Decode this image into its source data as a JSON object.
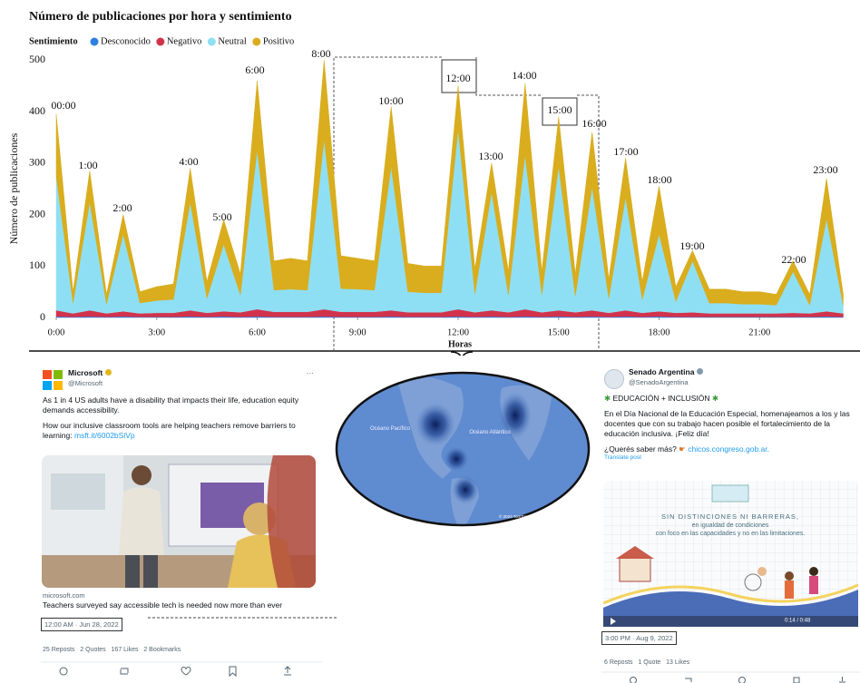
{
  "chart_data": {
    "type": "area",
    "stacked": true,
    "title": "Número de publicaciones por hora y sentimiento",
    "legend_title": "Sentimiento",
    "x_label": "Horas",
    "y_label": "Número de publicaciones",
    "x": [
      0,
      0.5,
      1,
      1.5,
      2,
      2.5,
      3,
      3.5,
      4,
      4.5,
      5,
      5.5,
      6,
      6.5,
      7,
      7.5,
      8,
      8.5,
      9,
      9.5,
      10,
      10.5,
      11,
      11.5,
      12,
      12.5,
      13,
      13.5,
      14,
      14.5,
      15,
      15.5,
      16,
      16.5,
      17,
      17.5,
      18,
      18.5,
      19,
      19.5,
      20,
      20.5,
      21,
      21.5,
      22,
      22.5,
      23,
      23.5
    ],
    "xlim": [
      0,
      24
    ],
    "xticks": [
      {
        "value": 0,
        "label": "0:00"
      },
      {
        "value": 3,
        "label": "3:00"
      },
      {
        "value": 6,
        "label": "6:00"
      },
      {
        "value": 9,
        "label": "9:00"
      },
      {
        "value": 12,
        "label": "12:00"
      },
      {
        "value": 15,
        "label": "15:00"
      },
      {
        "value": 18,
        "label": "18:00"
      },
      {
        "value": 21,
        "label": "21:00"
      }
    ],
    "ylim": [
      0,
      520
    ],
    "yticks": [
      0,
      100,
      200,
      300,
      400,
      500
    ],
    "grid": false,
    "series": [
      {
        "name": "Desconocido",
        "color": "#2f7fe0",
        "values": [
          2,
          1,
          2,
          1,
          2,
          1,
          1,
          1,
          2,
          1,
          2,
          1,
          2,
          1,
          1,
          1,
          2,
          1,
          1,
          1,
          2,
          1,
          1,
          1,
          2,
          1,
          2,
          1,
          2,
          1,
          2,
          1,
          2,
          1,
          2,
          1,
          2,
          1,
          1,
          1,
          1,
          1,
          1,
          1,
          1,
          1,
          2,
          1
        ]
      },
      {
        "name": "Negativo",
        "color": "#d2334c",
        "values": [
          12,
          7,
          12,
          7,
          10,
          7,
          8,
          8,
          12,
          8,
          10,
          9,
          14,
          10,
          10,
          10,
          14,
          10,
          10,
          10,
          12,
          9,
          9,
          9,
          14,
          9,
          12,
          9,
          14,
          9,
          12,
          9,
          12,
          8,
          12,
          8,
          10,
          8,
          9,
          7,
          7,
          7,
          7,
          7,
          8,
          7,
          10,
          7
        ]
      },
      {
        "name": "Neutral",
        "color": "#8fdff4",
        "values": [
          260,
          20,
          210,
          18,
          150,
          20,
          24,
          26,
          210,
          28,
          130,
          34,
          310,
          42,
          44,
          42,
          330,
          45,
          44,
          42,
          280,
          40,
          38,
          38,
          350,
          36,
          230,
          34,
          300,
          34,
          280,
          32,
          240,
          28,
          220,
          26,
          150,
          22,
          100,
          20,
          20,
          18,
          18,
          16,
          80,
          16,
          180,
          16
        ]
      },
      {
        "name": "Positivo",
        "color": "#d9ad1d",
        "values": [
          121,
          22,
          61,
          19,
          38,
          22,
          27,
          30,
          66,
          33,
          48,
          41,
          134,
          57,
          60,
          57,
          154,
          64,
          60,
          57,
          116,
          55,
          52,
          52,
          84,
          49,
          56,
          46,
          139,
          46,
          96,
          43,
          106,
          38,
          76,
          35,
          93,
          29,
          20,
          27,
          27,
          24,
          24,
          21,
          21,
          21,
          78,
          21
        ]
      }
    ],
    "annotations": [
      "00:00",
      "1:00",
      "2:00",
      "4:00",
      "5:00",
      "6:00",
      "8:00",
      "10:00",
      "12:00",
      "13:00",
      "14:00",
      "15:00",
      "16:00",
      "17:00",
      "18:00",
      "19:00",
      "22:00",
      "23:00"
    ]
  },
  "tweet_left": {
    "name": "Microsoft",
    "handle": "@Microsoft",
    "text1": "As 1 in 4 US adults have a disability that impacts their life, education equity demands accessibility.",
    "text2": "How our inclusive classroom tools are helping teachers remove barriers to learning:",
    "link": "msft.it/6002bSiVp",
    "card_domain": "microsoft.com",
    "card_title": "Teachers surveyed say accessible tech is needed now more than ever",
    "timestamp": "12:00 AM · Jun 28, 2022",
    "stats": [
      "25 Reposts",
      "2 Quotes",
      "167 Likes",
      "2 Bookmarks"
    ]
  },
  "map": {
    "labels": [
      "Océano Pacífico",
      "Océano Atlántico"
    ],
    "credit": "© 2023 TomTom"
  },
  "tweet_right": {
    "name": "Senado Argentina",
    "handle": "@SenadoArgentina",
    "heading": "EDUCACIÓN + INCLUSIÓN",
    "text1": "En el Día Nacional de la Educación Especial, homenajeamos a los y las docentes que con su trabajo hacen posible el fortalecimiento de la educación inclusiva. ¡Feliz día!",
    "text2": "¿Querés saber más?",
    "link": "chicos.congreso.gob.ar.",
    "translate": "Translate post",
    "image_lines": [
      "SIN DISTINCIONES NI BARRERAS,",
      "en igualdad de condiciones",
      "con foco en las capacidades y no en las limitaciones."
    ],
    "video_time": "0:14 / 0:48",
    "timestamp": "3:00 PM · Aug 9, 2022",
    "stats": [
      "6 Reposts",
      "1 Quote",
      "13 Likes"
    ]
  }
}
